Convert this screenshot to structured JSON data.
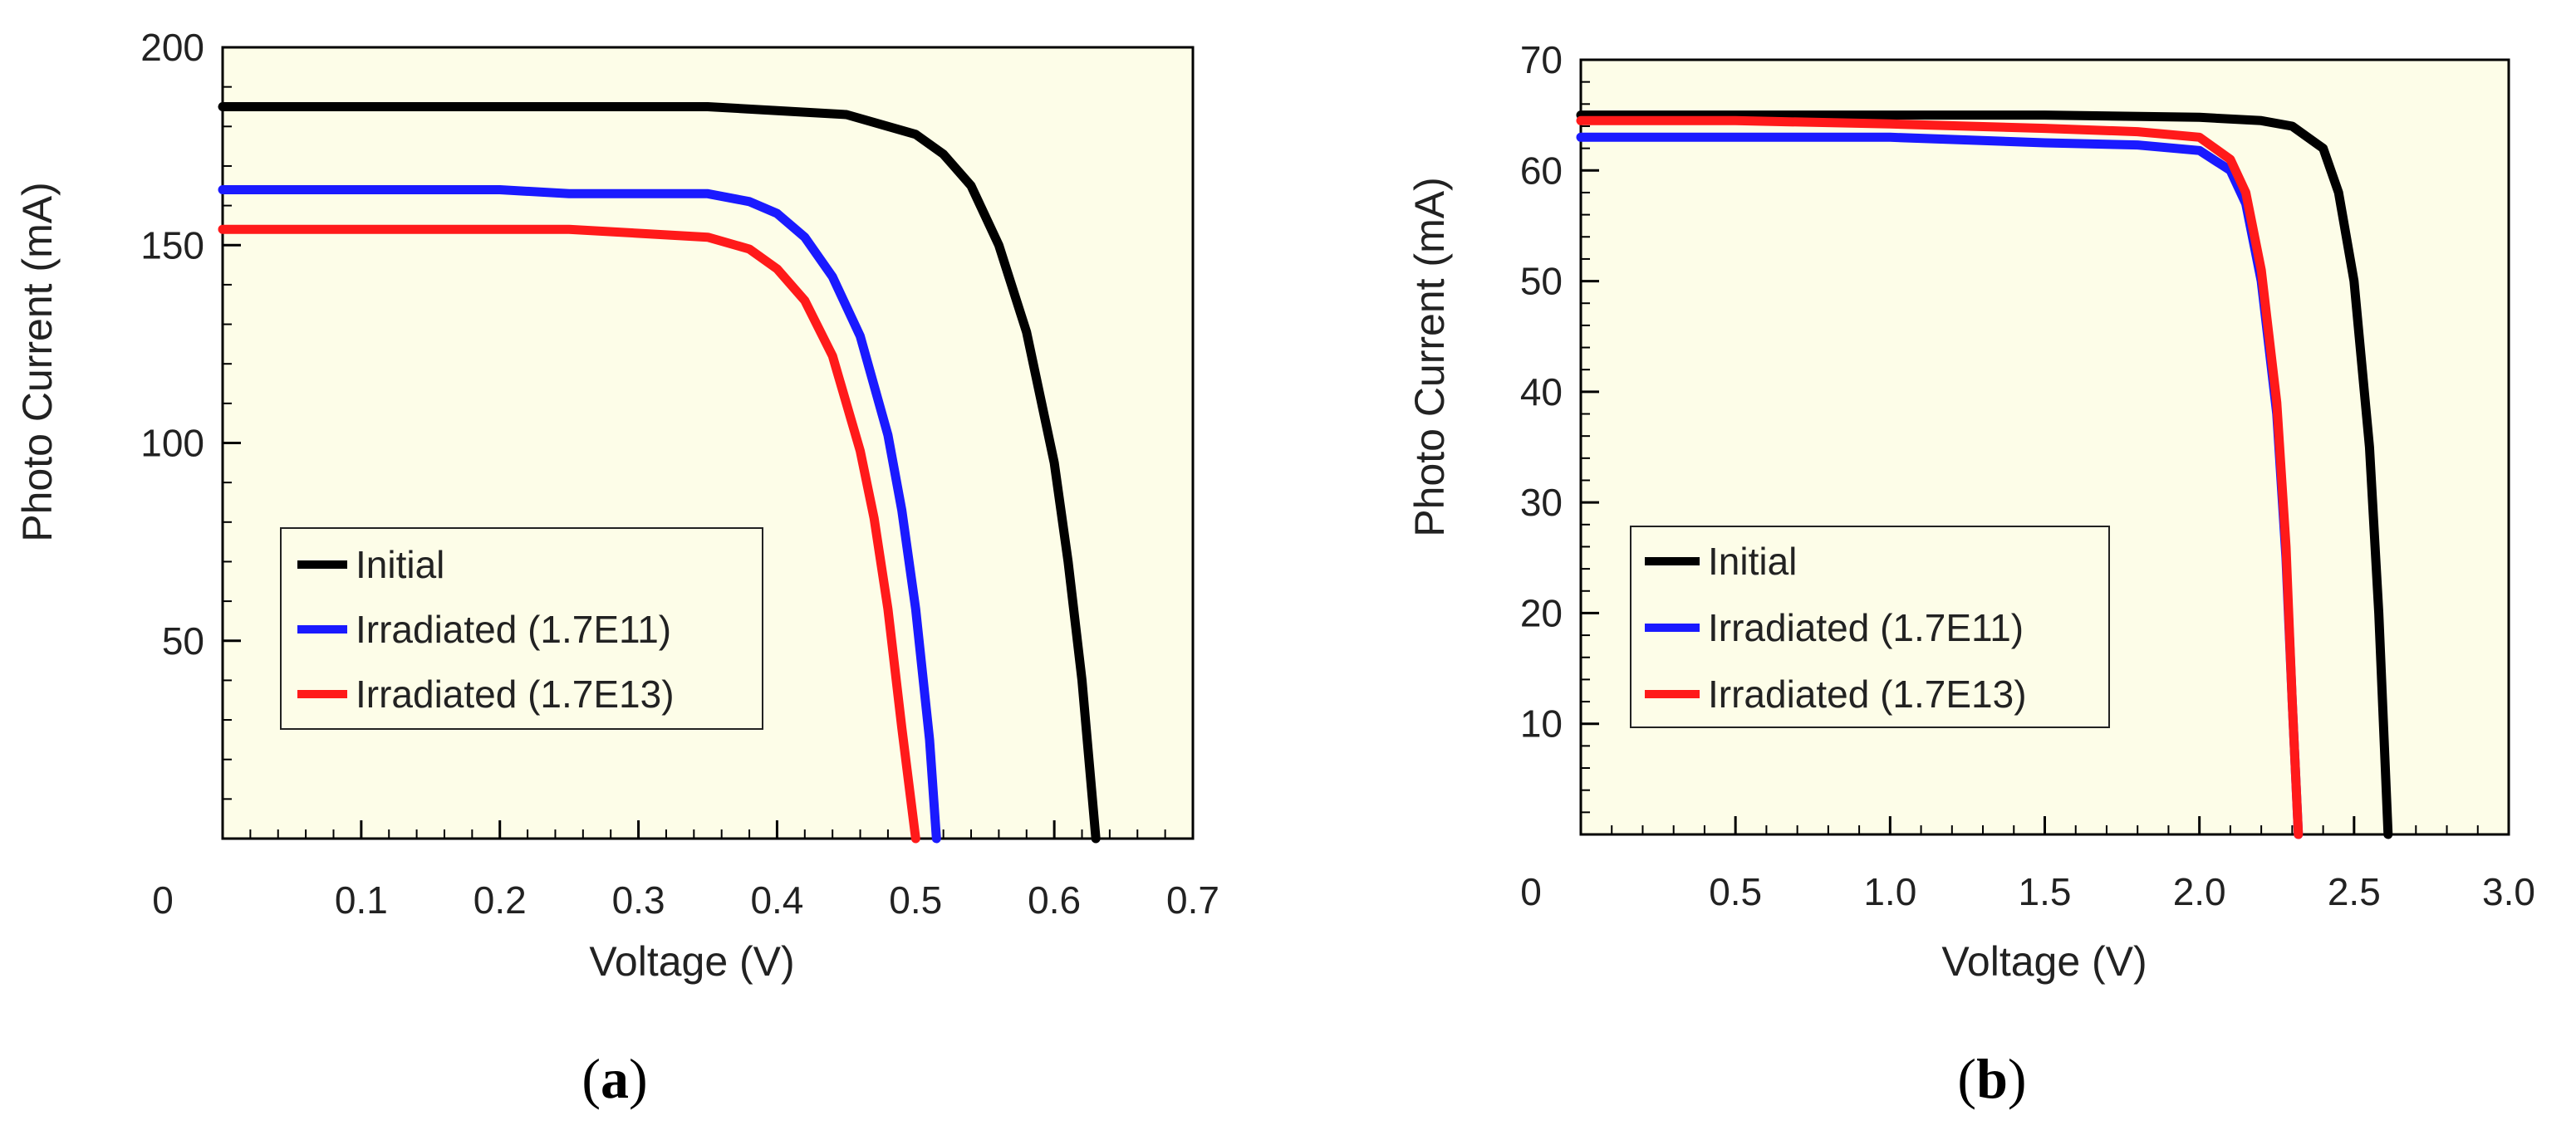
{
  "colors": {
    "plot_bg": "#fdfde8",
    "axis": "#000000",
    "initial": "#000000",
    "irr_e11": "#1a1aff",
    "irr_e13": "#ff1a1a"
  },
  "chart_data": [
    {
      "type": "line",
      "panel_label": "a",
      "xlabel": "Voltage (V)",
      "ylabel": "Photo Current (mA)",
      "xlim": [
        0,
        0.7
      ],
      "ylim": [
        0,
        200
      ],
      "x_ticks": [
        0,
        0.1,
        0.2,
        0.3,
        0.4,
        0.5,
        0.6,
        0.7
      ],
      "x_tick_labels": [
        "0",
        "0.1",
        "0.2",
        "0.3",
        "0.4",
        "0.5",
        "0.6",
        "0.7"
      ],
      "y_ticks": [
        50,
        100,
        150,
        200
      ],
      "y_tick_labels": [
        "50",
        "100",
        "150",
        "200"
      ],
      "legend_position": "lower-left",
      "grid": false,
      "series": [
        {
          "name": "Initial",
          "color_key": "initial",
          "x": [
            0,
            0.05,
            0.1,
            0.15,
            0.2,
            0.25,
            0.3,
            0.35,
            0.4,
            0.45,
            0.5,
            0.52,
            0.54,
            0.56,
            0.58,
            0.6,
            0.61,
            0.62,
            0.63
          ],
          "y": [
            185,
            185,
            185,
            185,
            185,
            185,
            185,
            185,
            184,
            183,
            178,
            173,
            165,
            150,
            128,
            95,
            70,
            40,
            0
          ]
        },
        {
          "name": "Irradiated (1.7E11)",
          "color_key": "irr_e11",
          "x": [
            0,
            0.05,
            0.1,
            0.15,
            0.2,
            0.25,
            0.3,
            0.35,
            0.38,
            0.4,
            0.42,
            0.44,
            0.46,
            0.48,
            0.49,
            0.5,
            0.51,
            0.515
          ],
          "y": [
            164,
            164,
            164,
            164,
            164,
            163,
            163,
            163,
            161,
            158,
            152,
            142,
            127,
            102,
            83,
            58,
            25,
            0
          ]
        },
        {
          "name": "Irradiated (1.7E13)",
          "color_key": "irr_e13",
          "x": [
            0,
            0.05,
            0.1,
            0.15,
            0.2,
            0.25,
            0.3,
            0.35,
            0.38,
            0.4,
            0.42,
            0.44,
            0.46,
            0.47,
            0.48,
            0.49,
            0.5
          ],
          "y": [
            154,
            154,
            154,
            154,
            154,
            154,
            153,
            152,
            149,
            144,
            136,
            122,
            98,
            81,
            58,
            28,
            0
          ]
        }
      ]
    },
    {
      "type": "line",
      "panel_label": "b",
      "xlabel": "Voltage (V)",
      "ylabel": "Photo Current (mA)",
      "xlim": [
        0,
        3.0
      ],
      "ylim": [
        0,
        70
      ],
      "x_ticks": [
        0,
        0.5,
        1.0,
        1.5,
        2.0,
        2.5,
        3.0
      ],
      "x_tick_labels": [
        "0",
        "0.5",
        "1.0",
        "1.5",
        "2.0",
        "2.5",
        "3.0"
      ],
      "y_ticks": [
        10,
        20,
        30,
        40,
        50,
        60,
        70
      ],
      "y_tick_labels": [
        "10",
        "20",
        "30",
        "40",
        "50",
        "60",
        "70"
      ],
      "legend_position": "lower-left",
      "grid": false,
      "series": [
        {
          "name": "Initial",
          "color_key": "initial",
          "x": [
            0,
            0.5,
            1.0,
            1.5,
            2.0,
            2.2,
            2.3,
            2.4,
            2.45,
            2.5,
            2.55,
            2.58,
            2.61
          ],
          "y": [
            65,
            65,
            65,
            65,
            64.8,
            64.5,
            64,
            62,
            58,
            50,
            35,
            20,
            0
          ]
        },
        {
          "name": "Irradiated (1.7E11)",
          "color_key": "irr_e11",
          "x": [
            0,
            0.5,
            1.0,
            1.5,
            1.8,
            2.0,
            2.1,
            2.15,
            2.2,
            2.25,
            2.28,
            2.3,
            2.32
          ],
          "y": [
            63,
            63,
            63,
            62.5,
            62.3,
            61.8,
            60,
            57,
            50,
            38,
            25,
            12,
            0
          ]
        },
        {
          "name": "Irradiated (1.7E13)",
          "color_key": "irr_e13",
          "x": [
            0,
            0.5,
            1.0,
            1.5,
            1.8,
            2.0,
            2.1,
            2.15,
            2.2,
            2.25,
            2.28,
            2.3,
            2.32
          ],
          "y": [
            64.5,
            64.5,
            64.2,
            63.8,
            63.5,
            63,
            61,
            58,
            51,
            39,
            26,
            12,
            0
          ]
        }
      ]
    }
  ]
}
